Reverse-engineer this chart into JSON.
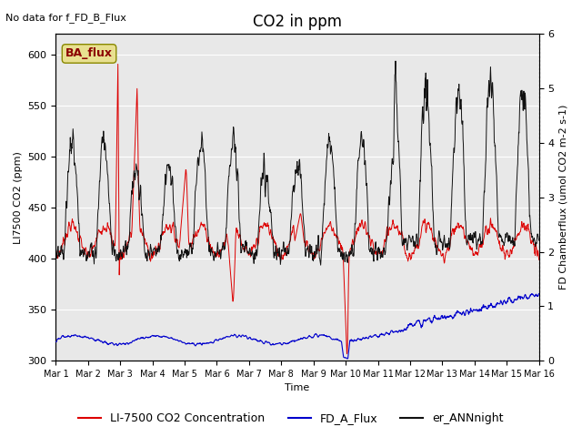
{
  "title": "CO2 in ppm",
  "no_data_text": "No data for f_FD_B_Flux",
  "ba_flux_label": "BA_flux",
  "xlabel": "Time",
  "ylabel_left": "LI7500 CO2 (ppm)",
  "ylabel_right_display": "FD Chamberflux (umol CO2 m-2 s-1)",
  "ylim_left": [
    300,
    620
  ],
  "ylim_right": [
    0.0,
    6.0
  ],
  "yticks_left": [
    300,
    350,
    400,
    450,
    500,
    550,
    600
  ],
  "yticks_right": [
    0.0,
    1.0,
    2.0,
    3.0,
    4.0,
    5.0,
    6.0
  ],
  "xtick_labels": [
    "Mar 1",
    "Mar 2",
    "Mar 3",
    "Mar 4",
    "Mar 5",
    "Mar 6",
    "Mar 7",
    "Mar 8",
    "Mar 9",
    "Mar 10",
    "Mar 11",
    "Mar 12",
    "Mar 13",
    "Mar 14",
    "Mar 15",
    "Mar 16"
  ],
  "n_days": 15,
  "pts_per_day": 96,
  "background_color": "#e8e8e8",
  "line_red_color": "#dd0000",
  "line_blue_color": "#0000cc",
  "line_black_color": "#111111",
  "legend_entries": [
    "LI-7500 CO2 Concentration",
    "FD_A_Flux",
    "er_ANNnight"
  ],
  "legend_colors": [
    "#dd0000",
    "#0000cc",
    "#111111"
  ],
  "ba_flux_box_color": "#e8e090",
  "title_fontsize": 12,
  "label_fontsize": 8,
  "tick_fontsize": 8,
  "legend_fontsize": 9
}
